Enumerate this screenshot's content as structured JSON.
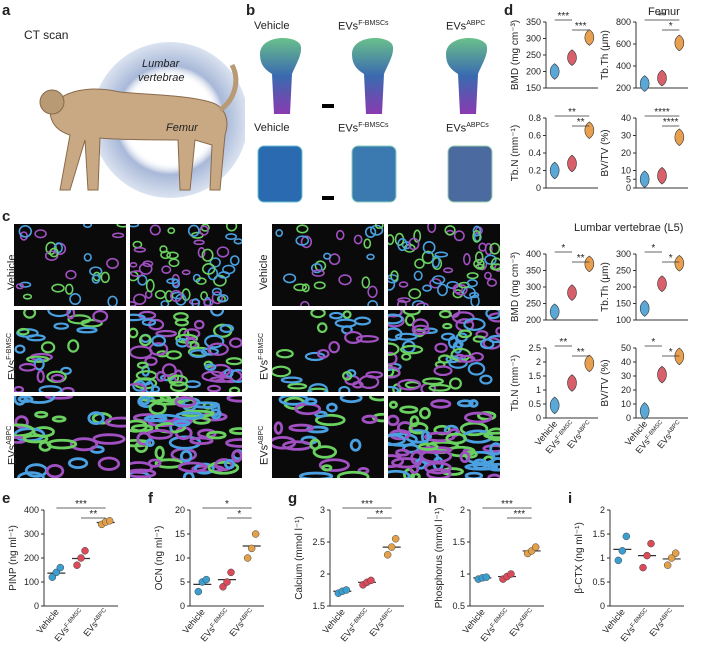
{
  "panels": {
    "a": {
      "letter": "a",
      "title": "CT scan",
      "lumbar": "Lumbar",
      "vertebrae": "vertebrae",
      "femur": "Femur"
    },
    "b": {
      "letter": "b",
      "labels": [
        "Vehicle",
        "EVs",
        "EVs"
      ],
      "sup_femur": [
        "",
        "F-BMSCs",
        "ABPC"
      ],
      "sup_lumbar": [
        "",
        "F-BMSCs",
        "ABPCs"
      ]
    },
    "c": {
      "letter": "c",
      "rows": [
        "Vehicle",
        "EVs",
        "EVs"
      ],
      "sups": [
        "",
        "F-BMSC",
        "ABPC"
      ]
    },
    "d": {
      "letter": "d",
      "femur_title": "Femur",
      "lumbar_title": "Lumbar vertebrae (L5)"
    },
    "e": {
      "letter": "e"
    },
    "f": {
      "letter": "f"
    },
    "g": {
      "letter": "g"
    },
    "h": {
      "letter": "h"
    },
    "i": {
      "letter": "i"
    }
  },
  "groups": {
    "vehicle": "Vehicle",
    "evs": "EVs",
    "sup_f": "F-BMSC",
    "sup_a": "ABPC"
  },
  "colors": {
    "vehicle": "#3a9fd0",
    "fbmsc": "#d94a5a",
    "abpc": "#e2a04a",
    "violin_v": "#5aa8d8",
    "violin_f": "#d8606a",
    "violin_a": "#e8a050"
  },
  "chart_data": [
    {
      "id": "d-femur-bmd",
      "type": "violin",
      "ylabel": "BMD (mg cm⁻³)",
      "ylim": [
        150,
        350
      ],
      "yticks": [
        150,
        200,
        250,
        300,
        350
      ],
      "values": [
        200,
        242,
        303
      ],
      "sig": [
        {
          "a": 0,
          "b": 1,
          "t": "***"
        },
        {
          "a": 1,
          "b": 2,
          "t": "***"
        }
      ]
    },
    {
      "id": "d-femur-tbth",
      "type": "violin",
      "ylabel": "Tb.Th (μm)",
      "ylim": [
        200,
        800
      ],
      "yticks": [
        200,
        400,
        600,
        800
      ],
      "values": [
        240,
        290,
        610
      ],
      "sig": [
        {
          "a": 0,
          "b": 2,
          "t": "**"
        },
        {
          "a": 1,
          "b": 2,
          "t": "*"
        }
      ]
    },
    {
      "id": "d-femur-tbn",
      "type": "violin",
      "ylabel": "Tb.N (mm⁻¹)",
      "ylim": [
        0,
        0.8
      ],
      "yticks": [
        0,
        0.2,
        0.4,
        0.6,
        0.8
      ],
      "values": [
        0.2,
        0.28,
        0.66
      ],
      "sig": [
        {
          "a": 0,
          "b": 2,
          "t": "**"
        },
        {
          "a": 1,
          "b": 2,
          "t": "**"
        }
      ]
    },
    {
      "id": "d-femur-bvtv",
      "type": "violin",
      "ylabel": "BV/TV (%)",
      "ylim": [
        0,
        40
      ],
      "yticks": [
        0,
        5,
        10,
        20,
        30,
        40
      ],
      "values": [
        5,
        7,
        29
      ],
      "sig": [
        {
          "a": 0,
          "b": 2,
          "t": "****"
        },
        {
          "a": 1,
          "b": 2,
          "t": "****"
        }
      ]
    },
    {
      "id": "d-lum-bmd",
      "type": "violin",
      "ylabel": "BMD (mg cm⁻³)",
      "ylim": [
        200,
        400
      ],
      "yticks": [
        200,
        250,
        300,
        350,
        400
      ],
      "values": [
        225,
        283,
        370
      ],
      "sig": [
        {
          "a": 0,
          "b": 1,
          "t": "*"
        },
        {
          "a": 1,
          "b": 2,
          "t": "**"
        }
      ]
    },
    {
      "id": "d-lum-tbth",
      "type": "violin",
      "ylabel": "Tb.Th (μm)",
      "ylim": [
        100,
        300
      ],
      "yticks": [
        100,
        150,
        200,
        250,
        300
      ],
      "values": [
        135,
        210,
        272
      ],
      "sig": [
        {
          "a": 0,
          "b": 1,
          "t": "*"
        },
        {
          "a": 1,
          "b": 2,
          "t": "*"
        }
      ]
    },
    {
      "id": "d-lum-tbn",
      "type": "violin",
      "ylabel": "Tb.N (mm⁻¹)",
      "ylim": [
        0,
        2.5
      ],
      "yticks": [
        0,
        0.5,
        1.0,
        1.5,
        2.0,
        2.5
      ],
      "values": [
        0.45,
        1.25,
        1.95
      ],
      "sig": [
        {
          "a": 0,
          "b": 1,
          "t": "**"
        },
        {
          "a": 1,
          "b": 2,
          "t": "**"
        }
      ]
    },
    {
      "id": "d-lum-bvtv",
      "type": "violin",
      "ylabel": "BV/TV (%)",
      "ylim": [
        0,
        50
      ],
      "yticks": [
        0,
        10,
        20,
        30,
        40,
        50
      ],
      "values": [
        5,
        31,
        44
      ],
      "sig": [
        {
          "a": 0,
          "b": 1,
          "t": "*"
        },
        {
          "a": 1,
          "b": 2,
          "t": "*"
        }
      ]
    },
    {
      "id": "e",
      "type": "scatter",
      "ylabel": "PINP (ng ml⁻¹)",
      "ylim": [
        0,
        400
      ],
      "yticks": [
        0,
        100,
        200,
        300,
        400
      ],
      "points": [
        [
          120,
          140,
          160
        ],
        [
          170,
          200,
          230
        ],
        [
          340,
          350,
          355
        ]
      ],
      "means": [
        137,
        198,
        348
      ],
      "sig": [
        {
          "a": 0,
          "b": 2,
          "t": "***"
        },
        {
          "a": 1,
          "b": 2,
          "t": "**"
        }
      ]
    },
    {
      "id": "f",
      "type": "scatter",
      "ylabel": "OCN (ng ml⁻¹)",
      "ylim": [
        0,
        20
      ],
      "yticks": [
        0,
        5,
        10,
        15,
        20
      ],
      "points": [
        [
          3,
          5,
          5.5
        ],
        [
          4,
          5,
          7
        ],
        [
          10,
          12,
          15
        ]
      ],
      "means": [
        4.5,
        5.5,
        12.5
      ],
      "sig": [
        {
          "a": 0,
          "b": 2,
          "t": "*"
        },
        {
          "a": 1,
          "b": 2,
          "t": "*"
        }
      ]
    },
    {
      "id": "g",
      "type": "scatter",
      "ylabel": "Calcium (mmol l⁻¹)",
      "ylim": [
        1.5,
        3.0
      ],
      "yticks": [
        1.5,
        2.0,
        2.5,
        3.0
      ],
      "points": [
        [
          1.7,
          1.73,
          1.75
        ],
        [
          1.83,
          1.87,
          1.9
        ],
        [
          2.3,
          2.42,
          2.55
        ]
      ],
      "means": [
        1.73,
        1.87,
        2.42
      ],
      "sig": [
        {
          "a": 0,
          "b": 2,
          "t": "***"
        },
        {
          "a": 1,
          "b": 2,
          "t": "**"
        }
      ]
    },
    {
      "id": "h",
      "type": "scatter",
      "ylabel": "Phosphorus (mmol l⁻¹)",
      "ylim": [
        0.5,
        2.0
      ],
      "yticks": [
        0.5,
        1.0,
        1.5,
        2.0
      ],
      "points": [
        [
          0.92,
          0.94,
          0.95
        ],
        [
          0.92,
          0.96,
          1.0
        ],
        [
          1.32,
          1.36,
          1.42
        ]
      ],
      "means": [
        0.94,
        0.96,
        1.36
      ],
      "sig": [
        {
          "a": 0,
          "b": 2,
          "t": "***"
        },
        {
          "a": 1,
          "b": 2,
          "t": "***"
        }
      ]
    },
    {
      "id": "i",
      "type": "scatter",
      "ylabel": "β-CTX (ng ml⁻¹)",
      "ylim": [
        0,
        2.0
      ],
      "yticks": [
        0,
        0.5,
        1.0,
        1.5,
        2.0
      ],
      "points": [
        [
          0.95,
          1.15,
          1.45
        ],
        [
          0.8,
          1.05,
          1.3
        ],
        [
          0.85,
          1.0,
          1.1
        ]
      ],
      "means": [
        1.18,
        1.05,
        0.98
      ],
      "sig": []
    }
  ]
}
